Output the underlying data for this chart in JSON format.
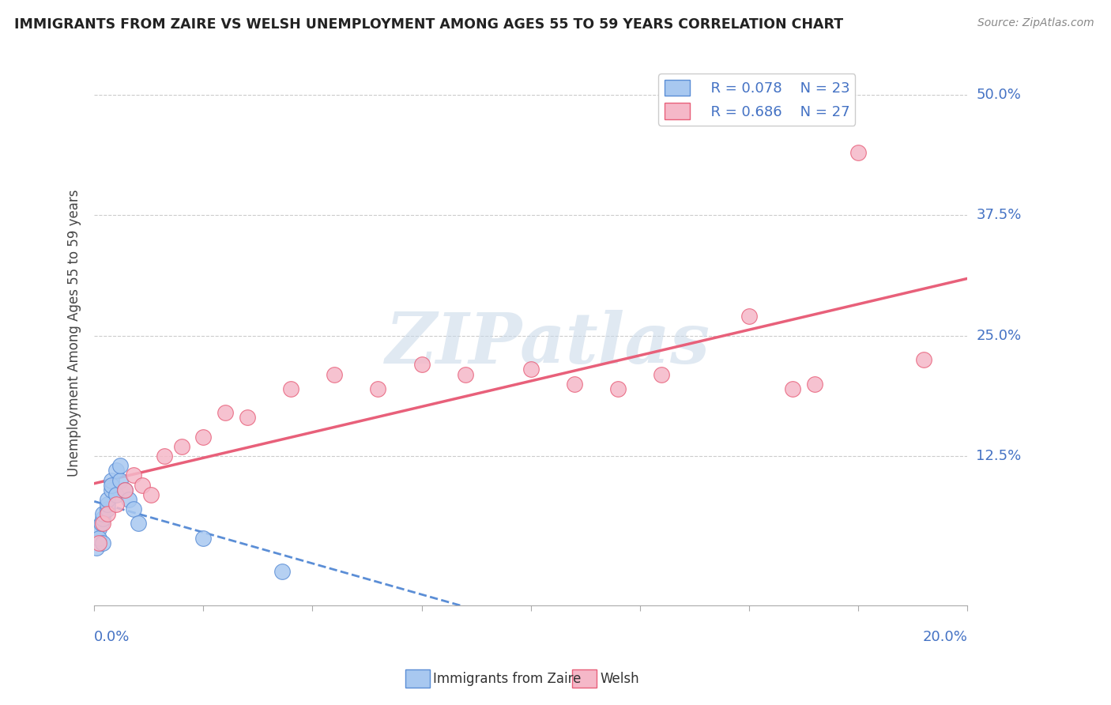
{
  "title": "IMMIGRANTS FROM ZAIRE VS WELSH UNEMPLOYMENT AMONG AGES 55 TO 59 YEARS CORRELATION CHART",
  "source": "Source: ZipAtlas.com",
  "ylabel": "Unemployment Among Ages 55 to 59 years",
  "legend_r1": "R = 0.078",
  "legend_n1": "N = 23",
  "legend_r2": "R = 0.686",
  "legend_n2": "N = 27",
  "blue_color": "#A8C8F0",
  "blue_edge_color": "#5B8ED6",
  "blue_line_color": "#5B8ED6",
  "pink_color": "#F5B8C8",
  "pink_edge_color": "#E8607A",
  "pink_line_color": "#E8607A",
  "legend_text_color": "#4472C4",
  "ytick_color": "#4472C4",
  "xtick_color": "#4472C4",
  "grid_color": "#CCCCCC",
  "background_color": "#FFFFFF",
  "watermark": "ZIPatlas",
  "xlim": [
    0.0,
    0.2
  ],
  "ylim": [
    -0.03,
    0.535
  ],
  "yticks": [
    0.0,
    0.125,
    0.25,
    0.375,
    0.5
  ],
  "ytick_labels": [
    "",
    "12.5%",
    "25.0%",
    "37.5%",
    "50.0%"
  ],
  "blue_x": [
    0.0005,
    0.001,
    0.001,
    0.0015,
    0.002,
    0.002,
    0.002,
    0.003,
    0.003,
    0.003,
    0.004,
    0.004,
    0.004,
    0.005,
    0.005,
    0.006,
    0.006,
    0.007,
    0.008,
    0.009,
    0.01,
    0.025,
    0.043
  ],
  "blue_y": [
    0.03,
    0.05,
    0.04,
    0.055,
    0.035,
    0.06,
    0.065,
    0.07,
    0.075,
    0.08,
    0.09,
    0.1,
    0.095,
    0.085,
    0.11,
    0.1,
    0.115,
    0.09,
    0.08,
    0.07,
    0.055,
    0.04,
    0.005
  ],
  "pink_x": [
    0.001,
    0.002,
    0.003,
    0.005,
    0.007,
    0.009,
    0.011,
    0.013,
    0.016,
    0.02,
    0.025,
    0.03,
    0.035,
    0.045,
    0.055,
    0.065,
    0.075,
    0.085,
    0.1,
    0.11,
    0.12,
    0.13,
    0.15,
    0.16,
    0.165,
    0.175,
    0.19
  ],
  "pink_y": [
    0.035,
    0.055,
    0.065,
    0.075,
    0.09,
    0.105,
    0.095,
    0.085,
    0.125,
    0.135,
    0.145,
    0.17,
    0.165,
    0.195,
    0.21,
    0.195,
    0.22,
    0.21,
    0.215,
    0.2,
    0.195,
    0.21,
    0.27,
    0.195,
    0.2,
    0.44,
    0.225
  ]
}
